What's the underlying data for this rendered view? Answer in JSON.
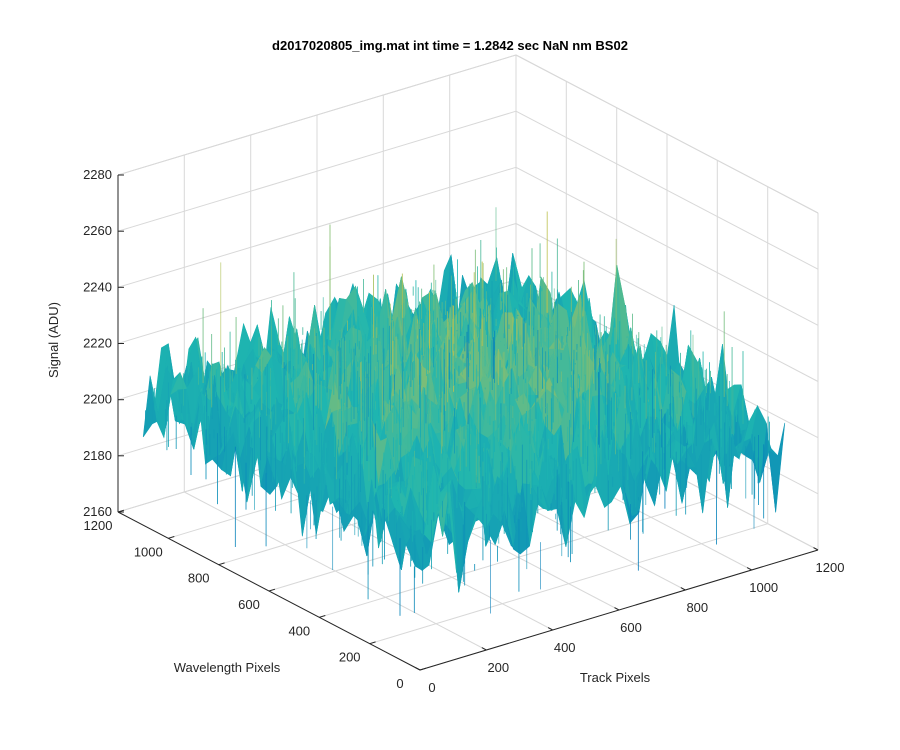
{
  "chart_data": {
    "type": "surface",
    "title": "d2017020805_img.mat int time = 1.2842 sec  NaN nm BS02",
    "xlabel": "Track Pixels",
    "ylabel": "Wavelength Pixels",
    "zlabel": "Signal (ADU)",
    "xlim": [
      0,
      1200
    ],
    "ylim": [
      0,
      1200
    ],
    "zlim": [
      2160,
      2280
    ],
    "xticks": [
      0,
      200,
      400,
      600,
      800,
      1000,
      1200
    ],
    "yticks": [
      0,
      200,
      400,
      600,
      800,
      1000,
      1200
    ],
    "zticks": [
      2160,
      2180,
      2200,
      2220,
      2240,
      2260,
      2280
    ],
    "surface_extent": {
      "x": [
        0,
        1100
      ],
      "y": [
        0,
        1100
      ]
    },
    "surface_profile": {
      "center_mean": 2222,
      "edge_mean": 2205,
      "corner_low": 2190,
      "noise_range": [
        2165,
        2270
      ]
    },
    "colormap": "parula",
    "colors": {
      "low": "#0072bd",
      "mid": "#1fb6b0",
      "high": "#edc632",
      "grid": "#d8d8d8",
      "axis": "#262626"
    },
    "grid": true,
    "view": "3d-default"
  }
}
